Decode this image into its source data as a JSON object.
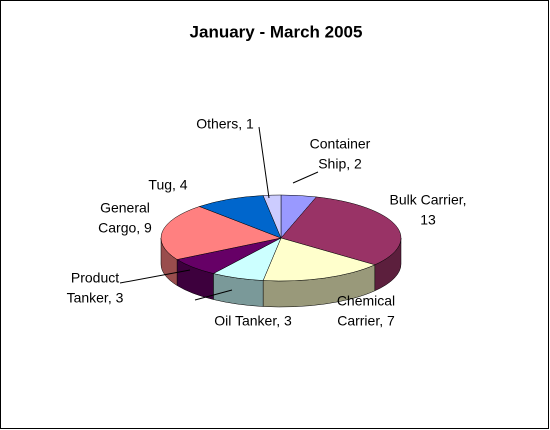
{
  "chart_data": {
    "type": "pie3d",
    "title": "January - March 2005",
    "values": [
      2,
      13,
      7,
      3,
      3,
      9,
      4,
      1
    ],
    "value_labels": [
      [
        "Container",
        "Ship, 2"
      ],
      [
        "Bulk Carrier,",
        "13"
      ],
      [
        "Chemical",
        "Carrier, 7"
      ],
      [
        "Oil Tanker, 3"
      ],
      [
        "Product",
        "Tanker, 3"
      ],
      [
        "General",
        "Cargo, 9"
      ],
      [
        "Tug, 4"
      ],
      [
        "Others, 1"
      ]
    ],
    "colors": [
      "#9999ff",
      "#993366",
      "#ffffcc",
      "#ccffff",
      "#660066",
      "#ff8080",
      "#0066cc",
      "#ccccff"
    ]
  }
}
